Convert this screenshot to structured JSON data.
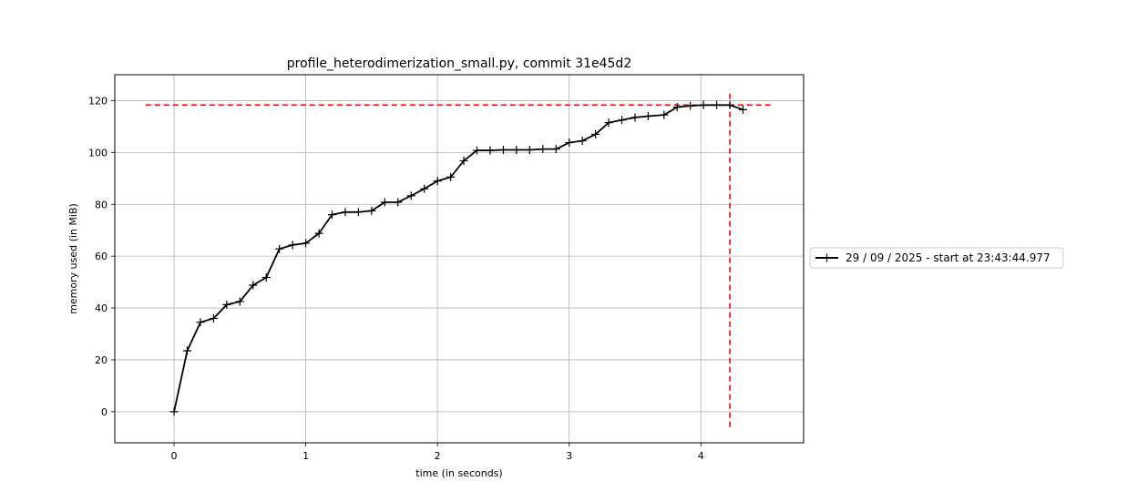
{
  "chart_data": {
    "type": "line",
    "title": "profile_heterodimerization_small.py, commit 31e45d2",
    "xlabel": "time (in seconds)",
    "ylabel": "memory used (in MiB)",
    "xlim": [
      -0.45,
      4.78
    ],
    "ylim": [
      -12,
      130
    ],
    "xticks": [
      0,
      1,
      2,
      3,
      4
    ],
    "yticks": [
      0,
      20,
      40,
      60,
      80,
      100,
      120
    ],
    "grid": true,
    "legend_position": "right-outside",
    "series": [
      {
        "name": "29 / 09 / 2025 - start at 23:43:44.977",
        "color": "#000000",
        "marker": "+",
        "x": [
          0.0,
          0.1,
          0.2,
          0.3,
          0.4,
          0.5,
          0.6,
          0.7,
          0.8,
          0.9,
          1.0,
          1.1,
          1.2,
          1.3,
          1.4,
          1.5,
          1.6,
          1.7,
          1.8,
          1.9,
          2.0,
          2.1,
          2.2,
          2.3,
          2.4,
          2.5,
          2.6,
          2.7,
          2.8,
          2.9,
          3.0,
          3.1,
          3.2,
          3.3,
          3.4,
          3.5,
          3.6,
          3.72,
          3.82,
          3.92,
          4.02,
          4.12,
          4.22,
          4.32
        ],
        "y": [
          0.0,
          23.5,
          34.5,
          36.0,
          41.3,
          42.5,
          48.8,
          51.8,
          62.8,
          64.3,
          65.0,
          68.8,
          76.0,
          77.0,
          77.0,
          77.5,
          80.8,
          80.8,
          83.3,
          86.0,
          89.0,
          90.5,
          96.8,
          100.8,
          100.8,
          101.0,
          101.0,
          101.0,
          101.3,
          101.3,
          103.8,
          104.5,
          107.0,
          111.5,
          112.5,
          113.5,
          114.0,
          114.5,
          117.5,
          118.0,
          118.3,
          118.3,
          118.3,
          116.5
        ]
      }
    ],
    "annotations": {
      "peak_memory_line": {
        "y": 118.3,
        "color": "#ff0000",
        "style": "dashed"
      },
      "peak_time_line": {
        "x": 4.22,
        "color": "#ff0000",
        "style": "dashed"
      }
    }
  }
}
